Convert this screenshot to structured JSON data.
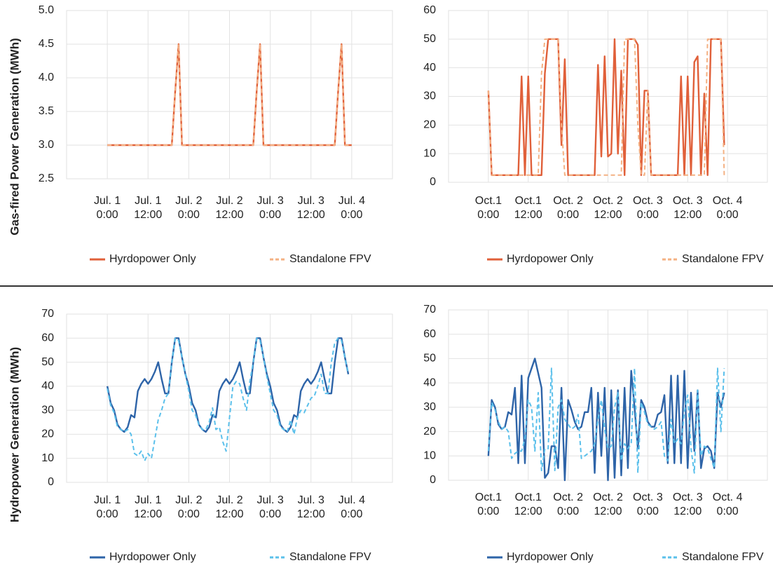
{
  "chart_data": [
    {
      "type": "line",
      "ylabel": "Gas-fired Power Generation (MWh)",
      "xlim": [
        -12,
        84
      ],
      "ylim": [
        2.5,
        5.0
      ],
      "xticks": [
        {
          "value": 0,
          "label": "Jul. 1\n0:00"
        },
        {
          "value": 12,
          "label": "Jul. 1\n12:00"
        },
        {
          "value": 24,
          "label": "Jul. 2\n0:00"
        },
        {
          "value": 36,
          "label": "Jul. 2\n12:00"
        },
        {
          "value": 48,
          "label": "Jul. 3\n0:00"
        },
        {
          "value": 60,
          "label": "Jul. 3\n12:00"
        },
        {
          "value": 72,
          "label": "Jul. 4\n0:00"
        }
      ],
      "yticks": [
        2.5,
        {
          "value": 3,
          "label": "3.0"
        },
        3.5,
        {
          "value": 4,
          "label": "4.0"
        },
        4.5,
        {
          "value": 5,
          "label": "5.0"
        }
      ],
      "grid": true,
      "x": [
        0,
        1,
        2,
        3,
        4,
        5,
        6,
        7,
        8,
        9,
        10,
        11,
        12,
        13,
        14,
        15,
        16,
        17,
        18,
        19,
        20,
        21,
        22,
        23,
        24,
        25,
        26,
        27,
        28,
        29,
        30,
        31,
        32,
        33,
        34,
        35,
        36,
        37,
        38,
        39,
        40,
        41,
        42,
        43,
        44,
        45,
        46,
        47,
        48,
        49,
        50,
        51,
        52,
        53,
        54,
        55,
        56,
        57,
        58,
        59,
        60,
        61,
        62,
        63,
        64,
        65,
        66,
        67,
        68,
        69,
        70,
        71,
        72
      ],
      "series": [
        {
          "name": "Hyrdopower Only",
          "color": "#e0603a",
          "dashed": false,
          "values": [
            3,
            3,
            3,
            3,
            3,
            3,
            3,
            3,
            3,
            3,
            3,
            3,
            3,
            3,
            3,
            3,
            3,
            3,
            3,
            3,
            3.8,
            4.5,
            3,
            3,
            3,
            3,
            3,
            3,
            3,
            3,
            3,
            3,
            3,
            3,
            3,
            3,
            3,
            3,
            3,
            3,
            3,
            3,
            3,
            3,
            3.8,
            4.5,
            3,
            3,
            3,
            3,
            3,
            3,
            3,
            3,
            3,
            3,
            3,
            3,
            3,
            3,
            3,
            3,
            3,
            3,
            3,
            3,
            3,
            3,
            3.8,
            4.5,
            3,
            3,
            3
          ]
        },
        {
          "name": "Standalone FPV",
          "color": "#f4b183",
          "dashed": true,
          "values": [
            3,
            3,
            3,
            3,
            3,
            3,
            3,
            3,
            3,
            3,
            3,
            3,
            3,
            3,
            3,
            3,
            3,
            3,
            3,
            3,
            3.8,
            4.5,
            3,
            3,
            3,
            3,
            3,
            3,
            3,
            3,
            3,
            3,
            3,
            3,
            3,
            3,
            3,
            3,
            3,
            3,
            3,
            3,
            3,
            3,
            3.8,
            4.5,
            3,
            3,
            3,
            3,
            3,
            3,
            3,
            3,
            3,
            3,
            3,
            3,
            3,
            3,
            3,
            3,
            3,
            3,
            3,
            3,
            3,
            3,
            3.8,
            4.5,
            3,
            3,
            3
          ]
        }
      ]
    },
    {
      "type": "line",
      "xlim": [
        -12,
        84
      ],
      "ylim": [
        0,
        60
      ],
      "xticks": [
        {
          "value": 0,
          "label": "Oct.1\n0:00"
        },
        {
          "value": 12,
          "label": "Oct.1\n12:00"
        },
        {
          "value": 24,
          "label": "Oct. 2\n0:00"
        },
        {
          "value": 36,
          "label": "Oct. 2\n12:00"
        },
        {
          "value": 48,
          "label": "Oct. 3\n0:00"
        },
        {
          "value": 60,
          "label": "Oct. 3\n12:00"
        },
        {
          "value": 72,
          "label": "Oct. 4\n0:00"
        }
      ],
      "yticks": [
        0,
        10,
        20,
        30,
        40,
        50,
        60
      ],
      "grid": true,
      "x": [
        0,
        1,
        2,
        3,
        4,
        5,
        6,
        7,
        8,
        9,
        10,
        11,
        12,
        13,
        14,
        15,
        16,
        17,
        18,
        19,
        20,
        21,
        22,
        23,
        24,
        25,
        26,
        27,
        28,
        29,
        30,
        31,
        32,
        33,
        34,
        35,
        36,
        37,
        38,
        39,
        40,
        41,
        42,
        43,
        44,
        45,
        46,
        47,
        48,
        49,
        50,
        51,
        52,
        53,
        54,
        55,
        56,
        57,
        58,
        59,
        60,
        61,
        62,
        63,
        64,
        65,
        66,
        67,
        68,
        69,
        70,
        71
      ],
      "series": [
        {
          "name": "Hyrdopower Only",
          "color": "#e0603a",
          "dashed": false,
          "values": [
            32,
            2.5,
            2.5,
            2.5,
            2.5,
            2.5,
            2.5,
            2.5,
            2.5,
            2.5,
            37,
            2.5,
            37,
            2.5,
            2.5,
            2.5,
            2.5,
            38,
            50,
            50,
            50,
            50,
            13,
            43,
            2.5,
            2.5,
            2.5,
            2.5,
            2.5,
            2.5,
            2.5,
            2.5,
            2.5,
            41,
            9,
            44,
            9,
            10,
            50,
            10,
            39,
            2.5,
            50,
            50,
            50,
            48,
            2.5,
            32,
            32,
            2.5,
            2.5,
            2.5,
            2.5,
            2.5,
            2.5,
            2.5,
            2.5,
            2.5,
            37,
            2.5,
            37,
            2.5,
            42,
            44,
            2.5,
            31,
            2.5,
            50,
            50,
            50,
            50,
            13
          ]
        },
        {
          "name": "Standalone FPV",
          "color": "#f4b183",
          "dashed": true,
          "values": [
            32,
            2.5,
            2.5,
            2.5,
            2.5,
            2.5,
            2.5,
            2.5,
            2.5,
            2.5,
            2.5,
            2.5,
            2.5,
            2.5,
            2.5,
            2.5,
            38,
            50,
            50,
            50,
            50,
            50,
            20,
            2.5,
            2.5,
            2.5,
            2.5,
            2.5,
            2.5,
            2.5,
            2.5,
            2.5,
            2.5,
            2.5,
            2.5,
            2.5,
            2.5,
            2.5,
            2.5,
            2.5,
            2.5,
            50,
            50,
            50,
            50,
            20,
            2.5,
            2.5,
            32,
            2.5,
            2.5,
            2.5,
            2.5,
            2.5,
            2.5,
            2.5,
            2.5,
            2.5,
            2.5,
            2.5,
            2.5,
            2.5,
            2.5,
            2.5,
            2.5,
            2.5,
            50,
            50,
            50,
            50,
            50,
            2.5
          ]
        }
      ]
    },
    {
      "type": "line",
      "ylabel": "Hydropower Generation (MWh)",
      "xlim": [
        -12,
        84
      ],
      "ylim": [
        0,
        70
      ],
      "xticks": [
        {
          "value": 0,
          "label": "Jul. 1\n0:00"
        },
        {
          "value": 12,
          "label": "Jul. 1\n12:00"
        },
        {
          "value": 24,
          "label": "Jul. 2\n0:00"
        },
        {
          "value": 36,
          "label": "Jul. 2\n12:00"
        },
        {
          "value": 48,
          "label": "Jul. 3\n0:00"
        },
        {
          "value": 60,
          "label": "Jul. 3\n12:00"
        },
        {
          "value": 72,
          "label": "Jul. 4\n0:00"
        }
      ],
      "yticks": [
        0,
        10,
        20,
        30,
        40,
        50,
        60,
        70
      ],
      "grid": true,
      "x": [
        0,
        1,
        2,
        3,
        4,
        5,
        6,
        7,
        8,
        9,
        10,
        11,
        12,
        13,
        14,
        15,
        16,
        17,
        18,
        19,
        20,
        21,
        22,
        23,
        24,
        25,
        26,
        27,
        28,
        29,
        30,
        31,
        32,
        33,
        34,
        35,
        36,
        37,
        38,
        39,
        40,
        41,
        42,
        43,
        44,
        45,
        46,
        47,
        48,
        49,
        50,
        51,
        52,
        53,
        54,
        55,
        56,
        57,
        58,
        59,
        60,
        61,
        62,
        63,
        64,
        65,
        66,
        67,
        68,
        69,
        70,
        71
      ],
      "series": [
        {
          "name": "Hyrdopower Only",
          "color": "#2e64a8",
          "dashed": false,
          "values": [
            40,
            33,
            30,
            24,
            22,
            21,
            23,
            28,
            27,
            38,
            41,
            43,
            41,
            43,
            46,
            50,
            43,
            37,
            37,
            50,
            60,
            60,
            52,
            45,
            40,
            33,
            30,
            24,
            22,
            21,
            23,
            28,
            27,
            38,
            41,
            43,
            41,
            43,
            46,
            50,
            43,
            37,
            37,
            50,
            60,
            60,
            52,
            45,
            40,
            33,
            30,
            24,
            22,
            21,
            23,
            28,
            27,
            38,
            41,
            43,
            41,
            43,
            46,
            50,
            43,
            37,
            37,
            50,
            60,
            60,
            52,
            45
          ]
        },
        {
          "name": "Standalone FPV",
          "color": "#5bc0eb",
          "dashed": true,
          "values": [
            39,
            32,
            29,
            23,
            22,
            21,
            22,
            20,
            12,
            11,
            13,
            9,
            12,
            10,
            18,
            26,
            30,
            35,
            37,
            50,
            60,
            59,
            52,
            45,
            38,
            30,
            28,
            24,
            22,
            22,
            25,
            31,
            22,
            23,
            17,
            13,
            27,
            40,
            42,
            41,
            35,
            30,
            42,
            50,
            60,
            59,
            52,
            44,
            37,
            30,
            28,
            23,
            22,
            21,
            26,
            20,
            27,
            30,
            29,
            32,
            35,
            36,
            40,
            45,
            37,
            37,
            50,
            58,
            60,
            59,
            52,
            45
          ]
        }
      ]
    },
    {
      "type": "line",
      "xlim": [
        -12,
        84
      ],
      "ylim": [
        0,
        70
      ],
      "xticks": [
        {
          "value": 0,
          "label": "Oct.1\n0:00"
        },
        {
          "value": 12,
          "label": "Oct.1\n12:00"
        },
        {
          "value": 24,
          "label": "Oct. 2\n0:00"
        },
        {
          "value": 36,
          "label": "Oct. 2\n12:00"
        },
        {
          "value": 48,
          "label": "Oct. 3\n0:00"
        },
        {
          "value": 60,
          "label": "Oct. 3\n12:00"
        },
        {
          "value": 72,
          "label": "Oct. 4\n0:00"
        }
      ],
      "yticks": [
        0,
        10,
        20,
        30,
        40,
        50,
        60,
        70
      ],
      "grid": true,
      "x": [
        0,
        1,
        2,
        3,
        4,
        5,
        6,
        7,
        8,
        9,
        10,
        11,
        12,
        13,
        14,
        15,
        16,
        17,
        18,
        19,
        20,
        21,
        22,
        23,
        24,
        25,
        26,
        27,
        28,
        29,
        30,
        31,
        32,
        33,
        34,
        35,
        36,
        37,
        38,
        39,
        40,
        41,
        42,
        43,
        44,
        45,
        46,
        47,
        48,
        49,
        50,
        51,
        52,
        53,
        54,
        55,
        56,
        57,
        58,
        59,
        60,
        61,
        62,
        63,
        64,
        65,
        66,
        67,
        68,
        69,
        70,
        71
      ],
      "series": [
        {
          "name": "Hyrdopower Only",
          "color": "#2e64a8",
          "dashed": false,
          "values": [
            10,
            33,
            30,
            23,
            21,
            22,
            28,
            27,
            38,
            7,
            43,
            7,
            42,
            46,
            50,
            44,
            38,
            1,
            3,
            14,
            14,
            5,
            38,
            0,
            33,
            29,
            24,
            21,
            22,
            28,
            28,
            38,
            3,
            36,
            10,
            38,
            0,
            37,
            1,
            37,
            2,
            38,
            5,
            45,
            30,
            13,
            33,
            30,
            24,
            22,
            22,
            27,
            28,
            35,
            7,
            43,
            7,
            43,
            7,
            45,
            5,
            36,
            12,
            37,
            5,
            13,
            14,
            12,
            5,
            36,
            30,
            36
          ]
        },
        {
          "name": "Standalone FPV",
          "color": "#5bc0eb",
          "dashed": true,
          "values": [
            12,
            32,
            29,
            24,
            21,
            22,
            20,
            9,
            11,
            12,
            12,
            17,
            33,
            30,
            12,
            36,
            4,
            13,
            13,
            46,
            4,
            30,
            33,
            25,
            23,
            21,
            22,
            27,
            9,
            10,
            11,
            12,
            15,
            25,
            33,
            21,
            13,
            14,
            30,
            36,
            8,
            15,
            13,
            15,
            46,
            3,
            32,
            28,
            23,
            22,
            21,
            22,
            24,
            10,
            8,
            25,
            15,
            17,
            15,
            28,
            35,
            13,
            3,
            37,
            10,
            14,
            13,
            9,
            5,
            46,
            20,
            46
          ]
        }
      ]
    }
  ]
}
